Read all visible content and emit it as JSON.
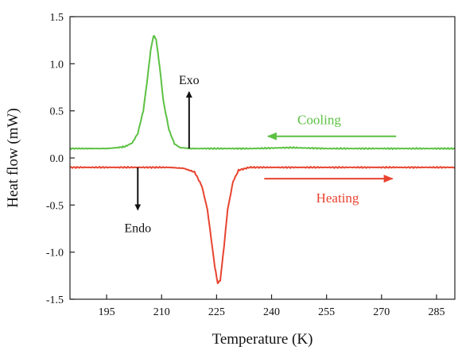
{
  "chart_data": {
    "type": "line",
    "title": "",
    "xlabel": "Temperature (K)",
    "ylabel": "Heat flow (mW)",
    "xlim": [
      185,
      290
    ],
    "ylim": [
      -1.5,
      1.5
    ],
    "x_ticks": [
      195,
      210,
      225,
      240,
      255,
      270,
      285
    ],
    "y_ticks": [
      -1.5,
      -1.0,
      -0.5,
      0.0,
      0.5,
      1.0,
      1.5
    ],
    "y_tick_labels": [
      "-1.5",
      "-1.0",
      "-0.5",
      "0.0",
      "0.5",
      "1.0",
      "1.5"
    ],
    "grid": false,
    "series": [
      {
        "name": "Cooling",
        "color": "#5cc143",
        "x": [
          185,
          190,
          195,
          198,
          200,
          202,
          203.5,
          205,
          206,
          207,
          207.8,
          208.5,
          209.5,
          210.5,
          212,
          213.5,
          215,
          218,
          225,
          235,
          245,
          255,
          265,
          275,
          285,
          290
        ],
        "y": [
          0.1,
          0.1,
          0.1,
          0.11,
          0.12,
          0.16,
          0.26,
          0.5,
          0.8,
          1.14,
          1.3,
          1.26,
          0.96,
          0.6,
          0.3,
          0.15,
          0.11,
          0.1,
          0.1,
          0.1,
          0.11,
          0.1,
          0.1,
          0.1,
          0.1,
          0.1
        ]
      },
      {
        "name": "Heating",
        "color": "#e8432f",
        "x": [
          185,
          195,
          205,
          212,
          216,
          219,
          221,
          222.5,
          223.5,
          224.5,
          225.3,
          226,
          227,
          228,
          229.5,
          231,
          234,
          240,
          250,
          260,
          270,
          280,
          290
        ],
        "y": [
          -0.1,
          -0.1,
          -0.1,
          -0.1,
          -0.11,
          -0.15,
          -0.3,
          -0.55,
          -0.85,
          -1.15,
          -1.33,
          -1.3,
          -0.95,
          -0.55,
          -0.25,
          -0.13,
          -0.1,
          -0.1,
          -0.1,
          -0.1,
          -0.1,
          -0.1,
          -0.1
        ]
      }
    ],
    "annotations": {
      "exo": {
        "text": "Exo",
        "x": 217.5,
        "y_from": 0.1,
        "y_to": 0.7
      },
      "endo": {
        "text": "Endo",
        "x": 203.5,
        "y_from": -0.1,
        "y_to": -0.55
      },
      "cooling_label": {
        "text": "Cooling",
        "x": 253,
        "y": 0.41
      },
      "cooling_arrow": {
        "x_from": 274,
        "x_to": 239,
        "y": 0.23
      },
      "heating_label": {
        "text": "Heating",
        "x": 258,
        "y": -0.42
      },
      "heating_arrow": {
        "x_from": 238,
        "x_to": 273,
        "y": -0.22
      }
    }
  }
}
